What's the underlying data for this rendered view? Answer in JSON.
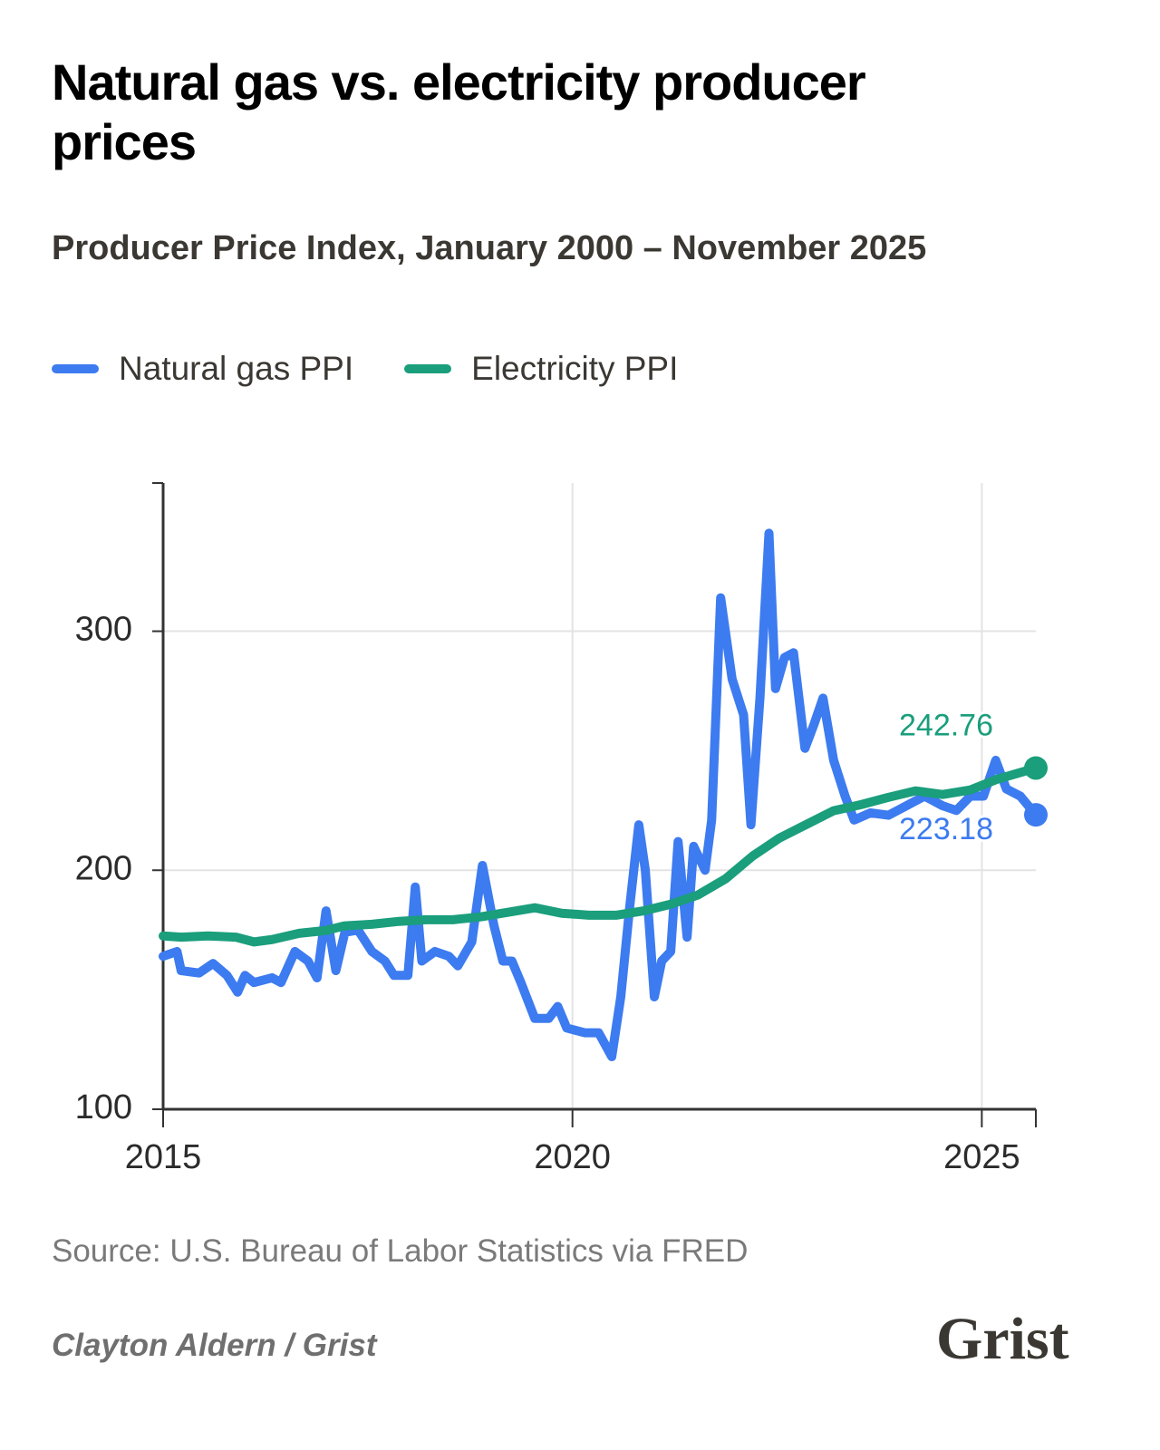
{
  "chart_data": {
    "type": "line",
    "title": "Natural gas vs. electricity producer prices",
    "subtitle": "Producer Price Index, January 2000 – November 2025",
    "source": "Source: U.S. Bureau of Labor Statistics via FRED",
    "credit": "Clayton Aldern / Grist",
    "brand": "Grist",
    "xlim": [
      2015,
      2025.66
    ],
    "xticks": [
      2015,
      2020,
      2025
    ],
    "ylim": [
      100,
      362
    ],
    "yticks": [
      100,
      200,
      300
    ],
    "grid": true,
    "series": [
      {
        "name": "Natural gas PPI",
        "color": "#3d7bf0",
        "x": [
          2015.0,
          2015.17,
          2015.22,
          2015.44,
          2015.61,
          2015.78,
          2015.91,
          2016.0,
          2016.11,
          2016.33,
          2016.44,
          2016.61,
          2016.77,
          2016.88,
          2016.99,
          2017.11,
          2017.22,
          2017.38,
          2017.55,
          2017.71,
          2017.82,
          2017.99,
          2018.08,
          2018.16,
          2018.32,
          2018.49,
          2018.6,
          2018.77,
          2018.9,
          2019.04,
          2019.15,
          2019.26,
          2019.37,
          2019.54,
          2019.71,
          2019.82,
          2019.93,
          2020.15,
          2020.32,
          2020.48,
          2020.59,
          2020.7,
          2020.81,
          2020.89,
          2021.0,
          2021.09,
          2021.2,
          2021.29,
          2021.4,
          2021.48,
          2021.62,
          2021.7,
          2021.81,
          2021.95,
          2022.09,
          2022.18,
          2022.29,
          2022.4,
          2022.48,
          2022.59,
          2022.7,
          2022.84,
          2022.95,
          2023.06,
          2023.19,
          2023.33,
          2023.44,
          2023.64,
          2023.86,
          2024.08,
          2024.3,
          2024.52,
          2024.69,
          2024.86,
          2025.02,
          2025.17,
          2025.3,
          2025.47,
          2025.66
        ],
        "values": [
          164,
          166,
          158,
          157,
          161,
          156,
          149,
          156,
          153,
          155,
          153,
          166,
          162,
          155,
          183,
          158,
          174,
          175,
          166,
          162,
          156,
          156,
          193,
          162,
          166,
          164,
          160,
          170,
          202,
          177,
          162,
          162,
          153,
          138,
          138,
          143,
          134,
          132,
          132,
          122,
          147,
          185,
          219,
          200,
          147,
          162,
          166,
          212,
          172,
          210,
          200,
          221,
          314,
          280,
          265,
          219,
          272,
          341,
          276,
          289,
          291,
          251,
          261,
          272,
          246,
          231,
          221,
          224,
          223,
          227,
          231,
          227,
          225,
          231,
          231,
          246,
          234,
          231,
          223.18
        ]
      },
      {
        "name": "Electricity PPI",
        "color": "#1a9e7c",
        "x": [
          2015.0,
          2015.22,
          2015.55,
          2015.89,
          2016.11,
          2016.33,
          2016.66,
          2016.99,
          2017.21,
          2017.55,
          2017.88,
          2018.21,
          2018.54,
          2018.88,
          2019.21,
          2019.54,
          2019.87,
          2020.2,
          2020.54,
          2020.87,
          2021.2,
          2021.53,
          2021.87,
          2022.2,
          2022.53,
          2022.86,
          2023.19,
          2023.53,
          2023.86,
          2024.19,
          2024.52,
          2024.86,
          2025.19,
          2025.66
        ],
        "values": [
          172.5,
          172,
          172.5,
          172,
          170,
          171,
          173.6,
          174.8,
          176.7,
          177.4,
          178.6,
          179.3,
          179.3,
          180.5,
          182.4,
          184.3,
          182,
          181.2,
          181.2,
          183,
          185.8,
          189.6,
          196.4,
          205.9,
          213.5,
          219.2,
          224.9,
          227.5,
          230.5,
          233.2,
          231.7,
          233.6,
          238.1,
          242.76
        ]
      }
    ]
  }
}
